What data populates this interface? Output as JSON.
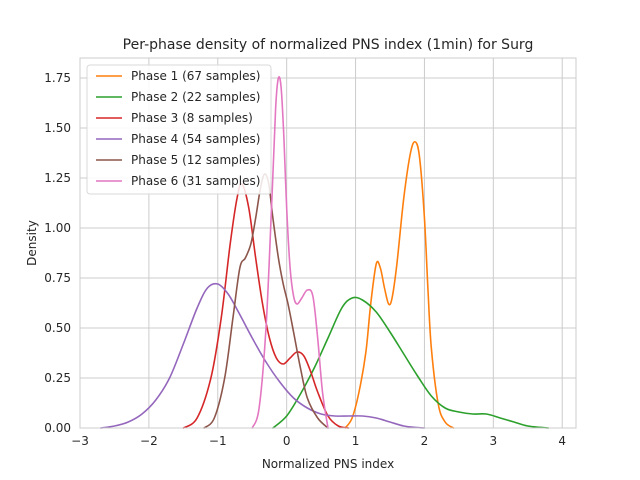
{
  "chart_data": {
    "type": "line",
    "title": "Per-phase density of normalized PNS index (1min) for Surg",
    "xlabel": "Normalized PNS index",
    "ylabel": "Density",
    "xlim": [
      -3,
      4.2
    ],
    "ylim": [
      0,
      1.85
    ],
    "xticks": [
      -3,
      -2,
      -1,
      0,
      1,
      2,
      3,
      4
    ],
    "xtick_labels": [
      "−3",
      "−2",
      "−1",
      "0",
      "1",
      "2",
      "3",
      "4"
    ],
    "yticks": [
      0,
      0.25,
      0.5,
      0.75,
      1.0,
      1.25,
      1.5,
      1.75
    ],
    "ytick_labels": [
      "0.00",
      "0.25",
      "0.50",
      "0.75",
      "1.00",
      "1.25",
      "1.50",
      "1.75"
    ],
    "grid": true,
    "legend_position": "top-left",
    "series": [
      {
        "name": "Phase 1 (67 samples)",
        "color": "#ff7f0e",
        "x": [
          0.85,
          0.95,
          1.05,
          1.15,
          1.22,
          1.3,
          1.36,
          1.42,
          1.48,
          1.53,
          1.6,
          1.7,
          1.8,
          1.87,
          1.93,
          2.0,
          2.05,
          2.1,
          2.2,
          2.3,
          2.42
        ],
        "y": [
          0.0,
          0.05,
          0.18,
          0.38,
          0.62,
          0.82,
          0.8,
          0.7,
          0.62,
          0.65,
          0.82,
          1.15,
          1.38,
          1.43,
          1.35,
          1.05,
          0.7,
          0.4,
          0.12,
          0.03,
          0.0
        ]
      },
      {
        "name": "Phase 2 (22 samples)",
        "color": "#2ca02c",
        "x": [
          -0.2,
          0.0,
          0.2,
          0.4,
          0.6,
          0.8,
          0.95,
          1.1,
          1.3,
          1.5,
          1.7,
          1.9,
          2.1,
          2.3,
          2.5,
          2.7,
          2.9,
          3.1,
          3.3,
          3.5,
          3.8
        ],
        "y": [
          0.0,
          0.06,
          0.17,
          0.3,
          0.45,
          0.6,
          0.65,
          0.64,
          0.58,
          0.48,
          0.37,
          0.26,
          0.16,
          0.1,
          0.08,
          0.07,
          0.07,
          0.05,
          0.03,
          0.01,
          0.0
        ]
      },
      {
        "name": "Phase 3 (8 samples)",
        "color": "#d62728",
        "x": [
          -1.5,
          -1.3,
          -1.1,
          -0.95,
          -0.82,
          -0.72,
          -0.65,
          -0.55,
          -0.45,
          -0.35,
          -0.25,
          -0.15,
          -0.05,
          0.05,
          0.15,
          0.25,
          0.35,
          0.45,
          0.6,
          0.75,
          0.9
        ],
        "y": [
          0.0,
          0.05,
          0.25,
          0.55,
          0.92,
          1.15,
          1.22,
          1.1,
          0.85,
          0.62,
          0.45,
          0.35,
          0.32,
          0.35,
          0.38,
          0.36,
          0.28,
          0.18,
          0.06,
          0.01,
          0.0
        ]
      },
      {
        "name": "Phase 4 (54 samples)",
        "color": "#9467bd",
        "x": [
          -2.7,
          -2.5,
          -2.3,
          -2.1,
          -1.9,
          -1.7,
          -1.5,
          -1.3,
          -1.15,
          -1.0,
          -0.85,
          -0.7,
          -0.5,
          -0.3,
          -0.1,
          0.1,
          0.3,
          0.5,
          0.7,
          0.9,
          1.1,
          1.3,
          1.5,
          1.7,
          1.9,
          2.0
        ],
        "y": [
          0.0,
          0.01,
          0.03,
          0.07,
          0.14,
          0.25,
          0.42,
          0.6,
          0.7,
          0.72,
          0.67,
          0.58,
          0.45,
          0.33,
          0.23,
          0.15,
          0.1,
          0.07,
          0.06,
          0.06,
          0.06,
          0.05,
          0.03,
          0.01,
          0.002,
          0.0
        ]
      },
      {
        "name": "Phase 5 (12 samples)",
        "color": "#8c564b",
        "x": [
          -1.2,
          -1.05,
          -0.9,
          -0.78,
          -0.68,
          -0.6,
          -0.52,
          -0.45,
          -0.38,
          -0.32,
          -0.26,
          -0.2,
          -0.12,
          -0.05,
          0.02,
          0.1,
          0.2,
          0.3,
          0.45,
          0.6
        ],
        "y": [
          0.0,
          0.05,
          0.25,
          0.55,
          0.8,
          0.85,
          0.92,
          1.05,
          1.2,
          1.27,
          1.22,
          1.05,
          0.85,
          0.72,
          0.62,
          0.48,
          0.3,
          0.15,
          0.05,
          0.0
        ]
      },
      {
        "name": "Phase 6 (31 samples)",
        "color": "#e377c2",
        "x": [
          -0.5,
          -0.4,
          -0.3,
          -0.22,
          -0.16,
          -0.12,
          -0.08,
          -0.04,
          0.0,
          0.05,
          0.1,
          0.15,
          0.22,
          0.3,
          0.38,
          0.45,
          0.52,
          0.6
        ],
        "y": [
          0.0,
          0.1,
          0.5,
          1.1,
          1.6,
          1.75,
          1.7,
          1.45,
          1.1,
          0.8,
          0.66,
          0.62,
          0.65,
          0.69,
          0.66,
          0.45,
          0.18,
          0.0
        ]
      }
    ]
  }
}
